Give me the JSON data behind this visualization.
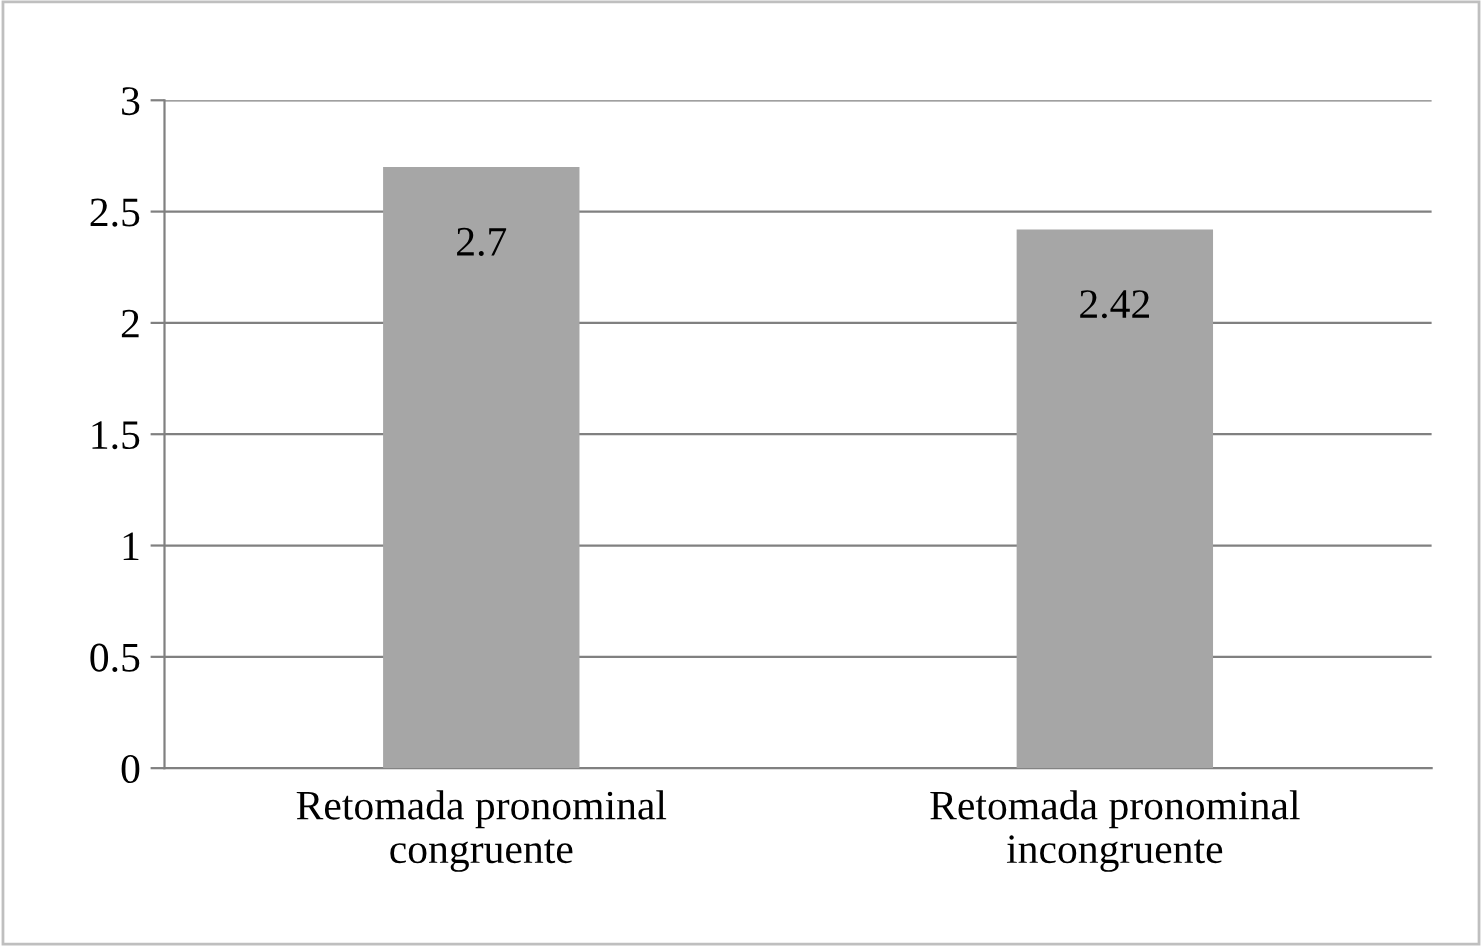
{
  "chart_data": {
    "type": "bar",
    "categories": [
      "Retomada pronominal\ncongruente",
      "Retomada pronominal\nincongruente"
    ],
    "values": [
      2.7,
      2.42
    ],
    "color": "#a6a6a6",
    "ylim": [
      0,
      3
    ],
    "yticks": [
      0,
      0.5,
      1,
      1.5,
      2,
      2.5,
      3
    ],
    "grid": "y",
    "data_labels": true
  }
}
